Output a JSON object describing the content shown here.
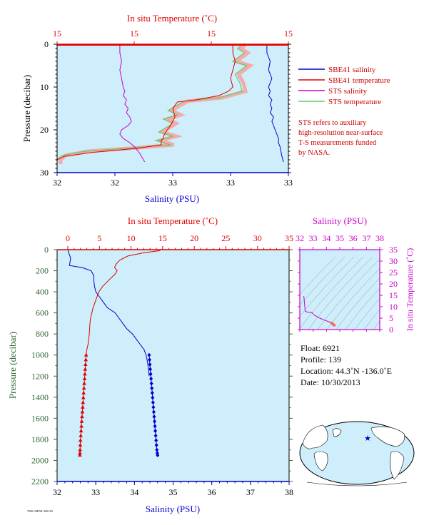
{
  "colors": {
    "plot_bg": "#cdeefa",
    "salinity": "#0000cc",
    "temperature": "#e00000",
    "sts_salinity": "#cc00cc",
    "sts_temperature": "#66cc66",
    "sts_temperature_shade": "#ff9999",
    "pressure_axis": "#336633",
    "ts_axis": "#cc00cc"
  },
  "top_panel": {
    "temp_label": "In situ Temperature (˚C)",
    "temp_ticks": [
      "15",
      "15",
      "15",
      "15"
    ],
    "sal_label": "Salinity (PSU)",
    "sal_ticks": [
      "32",
      "32",
      "33",
      "33",
      "33"
    ],
    "pres_label": "Pressure (decibar)",
    "pres_ticks": [
      "0",
      "10",
      "20",
      "30"
    ],
    "legend": [
      {
        "label": "SBE41 salinity",
        "color": "#0000cc"
      },
      {
        "label": "SBE41 temperature",
        "color": "#e00000"
      },
      {
        "label": "STS salinity",
        "color": "#cc00cc"
      },
      {
        "label": "STS temperature",
        "color": "#66cc66"
      }
    ],
    "note_lines": [
      "STS refers to auxiliary",
      "high-resolution near-surface",
      "T-S measurements funded",
      "by NASA."
    ]
  },
  "main_panel": {
    "temp_label": "In situ Temperature (˚C)",
    "temp_ticks": [
      "0",
      "5",
      "10",
      "15",
      "20",
      "25",
      "30",
      "35"
    ],
    "sal_label": "Salinity (PSU)",
    "sal_ticks": [
      "32",
      "33",
      "34",
      "35",
      "36",
      "37",
      "38"
    ],
    "pres_label": "Pressure (decibar)",
    "pres_ticks": [
      "0",
      "200",
      "400",
      "600",
      "800",
      "1000",
      "1200",
      "1400",
      "1600",
      "1800",
      "2000",
      "2200"
    ]
  },
  "ts_panel": {
    "sal_label": "Salinity (PSU)",
    "sal_ticks": [
      "32",
      "33",
      "34",
      "35",
      "36",
      "37",
      "38"
    ],
    "temp_label": "In situ Temperature (˚C)",
    "temp_ticks": [
      "0",
      "5",
      "10",
      "15",
      "20",
      "25",
      "30",
      "35"
    ]
  },
  "float_info": {
    "float": "Float:  6921",
    "profile": "Profile:  139",
    "location": "Location:  44.3˚N  -136.0˚E",
    "date": "Date:  10/30/2013"
  },
  "footer_code": "7000 GMPSL 00013/6",
  "chart_data": [
    {
      "type": "line",
      "name": "near-surface profile",
      "ylim": [
        30,
        0
      ],
      "series": [
        {
          "name": "SBE41 salinity",
          "x": [
            33.27,
            33.27,
            33.29,
            33.28,
            33.3,
            33.28,
            33.29,
            33.28,
            33.3,
            33.29,
            33.3,
            33.29,
            33.31,
            33.3,
            33.31,
            33.32,
            33.33,
            33.34,
            33.34,
            33.35,
            33.36,
            33.37
          ],
          "y": [
            0,
            2,
            4,
            6,
            8,
            10,
            11,
            12,
            13,
            14,
            15,
            16,
            17,
            18,
            19,
            20,
            21,
            22,
            23,
            24,
            26,
            27.5
          ]
        },
        {
          "name": "SBE41 temperature",
          "x": [
            0.76,
            0.76,
            0.77,
            0.76,
            0.75,
            0.76,
            0.74,
            0.7,
            0.6,
            0.52,
            0.5,
            0.51,
            0.49,
            0.47,
            0.46,
            0.46,
            0.45,
            0.45,
            0.35,
            0.15,
            0.03,
            0.0,
            0.0
          ],
          "y": [
            0,
            2,
            4,
            6,
            8,
            10,
            11,
            12,
            13,
            13.5,
            15,
            17,
            19,
            20.5,
            21.5,
            22,
            22.5,
            23.5,
            24.3,
            25.3,
            26.2,
            27,
            28
          ]
        },
        {
          "name": "STS salinity",
          "x": [
            32.38,
            32.38,
            32.39,
            32.38,
            32.39,
            32.4,
            32.41,
            32.4,
            32.42,
            32.41,
            32.43,
            32.42,
            32.44,
            32.45,
            32.43,
            32.39,
            32.38,
            32.4,
            32.44,
            32.47,
            32.5,
            32.53
          ],
          "y": [
            0,
            2,
            4,
            6,
            8,
            10,
            11,
            12,
            13,
            14,
            15,
            16,
            17,
            18,
            19,
            20,
            21,
            22,
            23,
            24,
            25.5,
            27.5
          ]
        },
        {
          "name": "STS temperature",
          "x": [
            0.8,
            0.78,
            0.81,
            0.76,
            0.82,
            0.77,
            0.79,
            0.8,
            0.7,
            0.55,
            0.51,
            0.48,
            0.52,
            0.46,
            0.5,
            0.47,
            0.44,
            0.5,
            0.43,
            0.49,
            0.33,
            0.12,
            0.02,
            0.0,
            0.0
          ],
          "y": [
            0,
            1,
            2,
            4,
            5,
            7,
            9,
            11,
            12.5,
            13.3,
            14.5,
            15.5,
            16.5,
            17.5,
            18.5,
            19.5,
            20.5,
            21.5,
            22.5,
            23.5,
            24.2,
            25,
            26,
            27,
            28
          ]
        }
      ]
    },
    {
      "type": "line",
      "name": "full profile",
      "xlim_salinity": [
        32,
        38
      ],
      "xlim_temperature": [
        0,
        35
      ],
      "ylim": [
        2200,
        0
      ],
      "series": [
        {
          "name": "SBE41 salinity",
          "x": [
            32.28,
            32.3,
            32.35,
            32.32,
            32.65,
            32.88,
            32.95,
            32.95,
            32.97,
            33.0,
            33.1,
            33.2,
            33.3,
            33.5,
            33.6,
            33.7,
            33.8,
            33.95,
            34.05,
            34.15,
            34.25,
            34.3,
            34.33,
            34.35,
            34.37,
            34.38
          ],
          "y": [
            0,
            30,
            80,
            150,
            170,
            200,
            250,
            300,
            350,
            400,
            450,
            500,
            550,
            600,
            650,
            700,
            750,
            800,
            850,
            900,
            950,
            1000,
            1050,
            1100,
            1150,
            1200
          ]
        },
        {
          "name": "SBE41 temperature",
          "x": [
            14.7,
            14.5,
            12.0,
            9.5,
            8.2,
            7.6,
            7.4,
            7.8,
            7.5,
            6.3,
            5.5,
            4.9,
            4.6,
            4.3,
            4.0,
            3.8,
            3.6,
            3.5,
            3.4,
            3.2,
            3.0,
            2.9
          ],
          "y": [
            0,
            10,
            30,
            60,
            100,
            140,
            170,
            200,
            230,
            300,
            350,
            400,
            450,
            500,
            550,
            600,
            650,
            700,
            800,
            900,
            950,
            1000
          ]
        }
      ],
      "points": [
        {
          "name": "salinity samples",
          "x": [
            34.38,
            34.39,
            34.4,
            34.41,
            34.42,
            34.43,
            34.44,
            34.45,
            34.46,
            34.47,
            34.48,
            34.49,
            34.5,
            34.51,
            34.52,
            34.53,
            34.54,
            34.55,
            34.56,
            34.57,
            34.58,
            34.59,
            34.6
          ],
          "y": [
            1000,
            1045,
            1090,
            1135,
            1180,
            1225,
            1270,
            1315,
            1360,
            1405,
            1450,
            1495,
            1540,
            1585,
            1630,
            1675,
            1720,
            1765,
            1810,
            1855,
            1900,
            1930,
            1950
          ]
        },
        {
          "name": "temperature samples",
          "x": [
            2.9,
            2.85,
            2.8,
            2.75,
            2.7,
            2.65,
            2.6,
            2.55,
            2.5,
            2.45,
            2.4,
            2.35,
            2.3,
            2.25,
            2.2,
            2.15,
            2.1,
            2.05,
            2.0,
            1.97,
            1.94,
            1.92,
            1.9
          ],
          "y": [
            1000,
            1045,
            1090,
            1135,
            1180,
            1225,
            1270,
            1315,
            1360,
            1405,
            1450,
            1495,
            1540,
            1585,
            1630,
            1675,
            1720,
            1765,
            1810,
            1855,
            1900,
            1930,
            1950
          ]
        }
      ]
    },
    {
      "type": "scatter",
      "name": "T-S diagram",
      "xlim": [
        32,
        38
      ],
      "ylim": [
        0,
        35
      ],
      "series": [
        {
          "name": "T-S curve",
          "x": [
            32.3,
            32.35,
            32.4,
            32.6,
            32.9,
            33.1,
            33.5,
            33.9,
            34.2,
            34.35
          ],
          "y": [
            14.7,
            12.0,
            8.0,
            7.6,
            7.5,
            6.3,
            5.0,
            4.0,
            3.4,
            2.9
          ]
        },
        {
          "name": "T-S deep samples",
          "x": [
            34.38,
            34.42,
            34.46,
            34.5,
            34.54,
            34.58,
            34.6
          ],
          "y": [
            2.9,
            2.7,
            2.5,
            2.3,
            2.1,
            1.95,
            1.9
          ]
        }
      ]
    }
  ]
}
